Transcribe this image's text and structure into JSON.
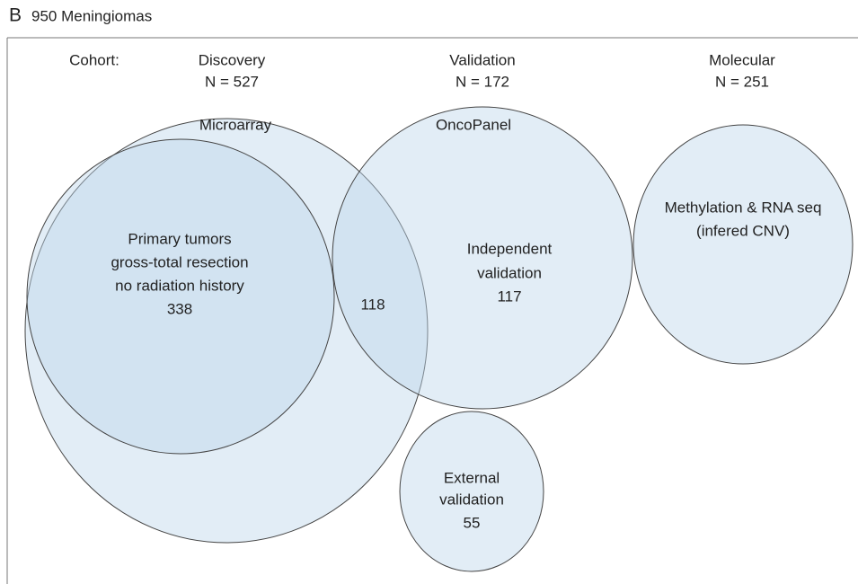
{
  "header": {
    "panel": "B",
    "title": "950 Meningiomas"
  },
  "cohort_label": "Cohort:",
  "cohorts": [
    {
      "name": "Discovery",
      "n": "N = 527"
    },
    {
      "name": "Validation",
      "n": "N = 172"
    },
    {
      "name": "Molecular",
      "n": "N = 251"
    }
  ],
  "sets": {
    "microarray": {
      "label": "Microarray"
    },
    "oncopanel": {
      "label": "OncoPanel"
    },
    "primary": {
      "lines": [
        "Primary tumors",
        "gross-total resection",
        "no radiation history"
      ],
      "count": 338
    },
    "overlap": {
      "count": 118
    },
    "independent": {
      "lines": [
        "Independent",
        "validation"
      ],
      "count": 117
    },
    "molecular": {
      "lines": [
        "Methylation & RNA seq",
        "(infered CNV)"
      ]
    },
    "external": {
      "lines": [
        "External",
        "validation"
      ],
      "count": 55
    }
  }
}
